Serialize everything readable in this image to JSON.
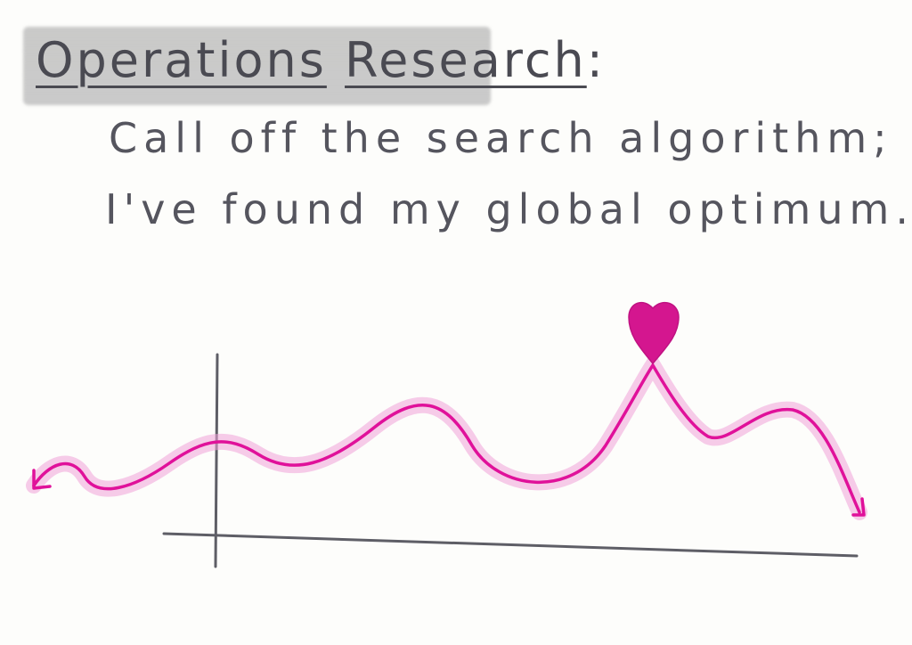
{
  "title": {
    "word1": "Operations",
    "word2": "Research",
    "colon": ":"
  },
  "caption": {
    "line1": "Call off the search algorithm;",
    "line2": "I've found my global optimum."
  },
  "drawing": {
    "curve_color": "#e0119a",
    "glow_color": "#f1a3d8",
    "heart_color": "#d4168f",
    "axis_color": "#5e5e66",
    "highlight_color": "#a9a9a9",
    "marker_icon": "heart-icon"
  }
}
